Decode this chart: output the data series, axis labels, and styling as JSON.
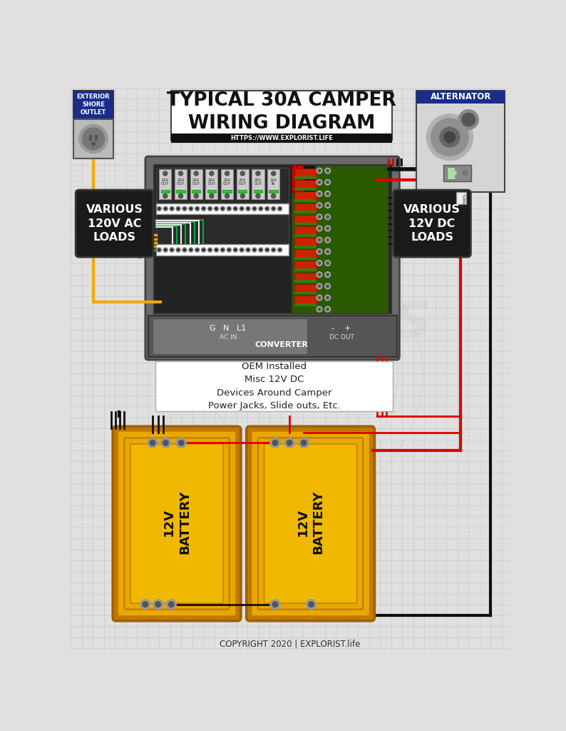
{
  "title": "TYPICAL 30A CAMPER\nWIRING DIAGRAM",
  "subtitle": "HTTPS://WWW.EXPLORIST.LIFE",
  "copyright": "COPYRIGHT 2020 | EXPLORIST.life",
  "bg_color": "#e0e0e0",
  "grid_color": "#c8c8c8",
  "title_box_color": "#ffffff",
  "title_text_color": "#111111",
  "subtitle_bg": "#111111",
  "subtitle_text": "#ffffff",
  "orange_wire": "#f5a800",
  "red_wire": "#dd0000",
  "black_wire": "#111111",
  "green_wire": "#00aa44",
  "white_wire": "#eeeeee",
  "panel_bg": "#3a3a3a",
  "panel_dark": "#222222",
  "battery_fill": "#e8a800",
  "battery_border": "#c07800",
  "battery_inner": "#f0b800",
  "loads_bg": "#1a1a1a",
  "loads_text": "#ffffff",
  "alt_header": "#1a2d8a",
  "shore_header": "#1a2d8a",
  "converter_bg": "#555555",
  "breaker_bg": "#cccccc",
  "breaker_switch": "#aaaaaa",
  "dc_panel_bg": "#2a5a00",
  "fuse_red": "#cc2200",
  "terminal_gray": "#999999",
  "wire_lw": 3.0,
  "thin_lw": 2.0
}
